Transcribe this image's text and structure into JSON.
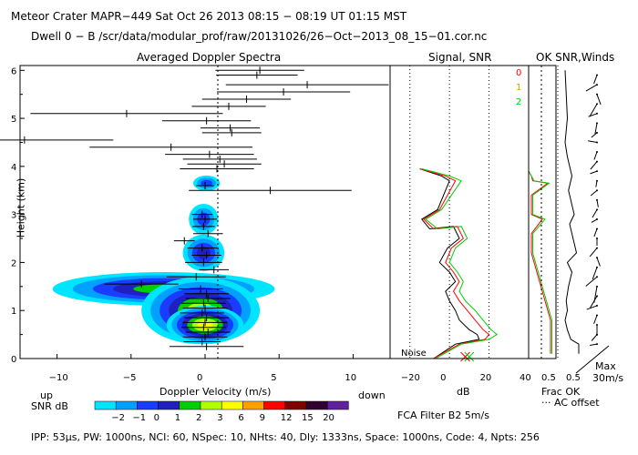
{
  "header": {
    "line1": "Meteor Crater   MAPR−449   Sat Oct 26 2013 08:15 − 08:19 UT 01:15 MST",
    "line2": "Dwell   0 −  B    /scr/data/modular_prof/raw/20131026/26−Oct−2013_08_15−01.cor.nc"
  },
  "colorbar": {
    "label": "SNR dB",
    "levels": [
      "−2",
      "−1",
      "0",
      "1",
      "2",
      "3",
      "6",
      "9",
      "12",
      "15",
      "20"
    ],
    "colors": [
      "#00e5ff",
      "#00a0ff",
      "#1a3cff",
      "#2020c0",
      "#00d000",
      "#b0ff00",
      "#ffff00",
      "#ffa000",
      "#ff0000",
      "#800000",
      "#300030",
      "#6020a0"
    ]
  },
  "footer": {
    "params": "IPP:  53μs,   PW: 1000ns,   NCI:  60,   NSpec: 10,  NHts: 40,   Dly: 1333ns,   Space: 1000ns,   Code: 4,   Npts: 256",
    "filter": "FCA Filter B2   5m/s",
    "up": "up",
    "down": "down"
  },
  "chart_data": [
    {
      "id": "doppler",
      "type": "heatmap",
      "title": "Averaged Doppler Spectra",
      "xlabel": "Doppler Velocity (m/s)",
      "ylabel": "Height (km)",
      "xlim": [
        -12.5,
        12.5
      ],
      "ylim": [
        0,
        6.1
      ],
      "xticks": [
        "−10",
        "−5",
        "0",
        "5",
        "10"
      ],
      "yticks": [
        "0",
        "1",
        "2",
        "3",
        "4",
        "5",
        "6"
      ],
      "spectra_peaks": [
        {
          "h": 6.0,
          "v": 3.7,
          "width": 6
        },
        {
          "h": 5.9,
          "v": 3.5,
          "width": 5.5
        },
        {
          "h": 5.7,
          "v": 6.9,
          "width": 11
        },
        {
          "h": 5.55,
          "v": 5.3,
          "width": 9
        },
        {
          "h": 5.4,
          "v": 2.8,
          "width": 6
        },
        {
          "h": 5.25,
          "v": 1.6,
          "width": 5
        },
        {
          "h": 5.1,
          "v": -5.3,
          "width": 13
        },
        {
          "h": 4.95,
          "v": 0.1,
          "width": 6
        },
        {
          "h": 4.8,
          "v": 1.7,
          "width": 4
        },
        {
          "h": 4.7,
          "v": 1.8,
          "width": 4
        },
        {
          "h": 4.55,
          "v": -12.2,
          "width": 12
        },
        {
          "h": 4.4,
          "v": -2.3,
          "width": 11
        },
        {
          "h": 4.25,
          "v": 0.3,
          "width": 6
        },
        {
          "h": 4.15,
          "v": 1.0,
          "width": 5
        },
        {
          "h": 4.05,
          "v": 1.3,
          "width": 5
        },
        {
          "h": 3.95,
          "v": 0.8,
          "width": 5
        },
        {
          "h": 3.6,
          "v": 0.0,
          "width": 1.2
        },
        {
          "h": 3.5,
          "v": 4.4,
          "width": 11
        },
        {
          "h": 3.0,
          "v": -0.2,
          "width": 1.4
        },
        {
          "h": 2.9,
          "v": 0.0,
          "width": 1.6
        },
        {
          "h": 2.75,
          "v": -0.1,
          "width": 1.5
        },
        {
          "h": 2.6,
          "v": 0.2,
          "width": 2
        },
        {
          "h": 2.45,
          "v": -1.4,
          "width": 1.4
        },
        {
          "h": 2.3,
          "v": -0.2,
          "width": 2
        },
        {
          "h": 2.15,
          "v": 0.1,
          "width": 2
        },
        {
          "h": 2.0,
          "v": -0.1,
          "width": 2.5
        },
        {
          "h": 1.85,
          "v": 0.6,
          "width": 2
        },
        {
          "h": 1.7,
          "v": -0.6,
          "width": 4
        },
        {
          "h": 1.55,
          "v": -4.3,
          "width": 5
        },
        {
          "h": 1.45,
          "v": -0.3,
          "width": 3
        },
        {
          "h": 1.35,
          "v": 0.1,
          "width": 3
        },
        {
          "h": 1.25,
          "v": 0.2,
          "width": 3
        },
        {
          "h": 1.15,
          "v": -0.1,
          "width": 3
        },
        {
          "h": 1.05,
          "v": 0.0,
          "width": 3
        },
        {
          "h": 0.95,
          "v": -0.2,
          "width": 3
        },
        {
          "h": 0.85,
          "v": 0.1,
          "width": 3
        },
        {
          "h": 0.75,
          "v": 0.0,
          "width": 3
        },
        {
          "h": 0.65,
          "v": -0.1,
          "width": 3
        },
        {
          "h": 0.55,
          "v": 0.2,
          "width": 3
        },
        {
          "h": 0.45,
          "v": 0.0,
          "width": 3
        },
        {
          "h": 0.35,
          "v": -0.2,
          "width": 2.5
        },
        {
          "h": 0.25,
          "v": 0.1,
          "width": 5
        }
      ],
      "snr_blobs": [
        {
          "h": 3.65,
          "v": 0.1,
          "hw": 0.9,
          "hh": 0.16,
          "level": 2
        },
        {
          "h": 2.9,
          "v": -0.1,
          "hw": 1.0,
          "hh": 0.32,
          "level": 2
        },
        {
          "h": 2.2,
          "v": -0.1,
          "hw": 1.4,
          "hh": 0.38,
          "level": 3
        },
        {
          "h": 1.45,
          "v": -2.8,
          "hw": 7.5,
          "hh": 0.35,
          "level": 4
        },
        {
          "h": 1.0,
          "v": -0.3,
          "hw": 4.0,
          "hh": 0.7,
          "level": 5
        },
        {
          "h": 0.7,
          "v": 0.0,
          "hw": 2.6,
          "hh": 0.4,
          "level": 6
        }
      ],
      "noise_label": "Noise"
    },
    {
      "id": "signal",
      "type": "line",
      "title": "Signal, SNR",
      "xlabel": "dB",
      "xlim": [
        -30,
        40
      ],
      "ylim": [
        0,
        6.1
      ],
      "xticks": [
        "−20",
        "0",
        "20",
        "40"
      ],
      "series": [
        {
          "name": "0",
          "color": "#000000",
          "x": [
            -15,
            -4,
            0,
            -6,
            -14,
            -10,
            2,
            5,
            -1,
            -5,
            0,
            3,
            -2,
            0,
            3,
            5,
            10,
            14,
            15,
            3,
            -8
          ],
          "h": [
            3.95,
            3.8,
            3.7,
            3.1,
            2.9,
            2.7,
            2.75,
            2.5,
            2.3,
            2.0,
            1.8,
            1.6,
            1.4,
            1.2,
            1.0,
            0.8,
            0.6,
            0.5,
            0.4,
            0.3,
            0.0
          ]
        },
        {
          "name": "1",
          "color": "#ff0000",
          "x": [
            -15,
            -2,
            3,
            -5,
            -13,
            -8,
            4,
            7,
            1,
            -2,
            2,
            5,
            2,
            5,
            9,
            13,
            17,
            20,
            18,
            5,
            -8
          ],
          "h": [
            3.95,
            3.8,
            3.7,
            3.1,
            2.9,
            2.7,
            2.75,
            2.5,
            2.3,
            2.0,
            1.8,
            1.6,
            1.4,
            1.2,
            1.0,
            0.8,
            0.6,
            0.5,
            0.4,
            0.3,
            0.0
          ]
        },
        {
          "name": "2",
          "color": "#00cc00",
          "x": [
            -14,
            0,
            6,
            -4,
            -12,
            -6,
            6,
            9,
            3,
            0,
            4,
            7,
            5,
            8,
            13,
            17,
            21,
            24,
            20,
            6,
            -7
          ],
          "h": [
            3.95,
            3.8,
            3.7,
            3.1,
            2.9,
            2.7,
            2.75,
            2.5,
            2.3,
            2.0,
            1.8,
            1.6,
            1.4,
            1.2,
            1.0,
            0.8,
            0.6,
            0.5,
            0.4,
            0.3,
            0.0
          ]
        }
      ],
      "noise_markers": [
        {
          "x": 8,
          "color": "#ff0000"
        },
        {
          "x": 10,
          "color": "#00cc00"
        }
      ]
    },
    {
      "id": "winds",
      "type": "line",
      "title": "OK SNR,Winds",
      "legend": [
        "0",
        "1",
        "2"
      ],
      "xlabel": "Frac OK",
      "xticks": [
        "0.5",
        "0.5"
      ],
      "note": "··· AC offset",
      "max_label": "Max",
      "speed_label": "30m/s",
      "frac_ok": {
        "x": [
          0.2,
          0.25,
          0.3,
          0.2,
          0.3,
          0.5,
          0.35,
          0.6,
          0.4,
          0.7,
          0.3,
          0.5,
          0.35,
          0.25,
          0.3,
          0.2,
          0.3,
          0.45,
          0.8,
          0.8
        ],
        "h": [
          6.0,
          5.5,
          5.0,
          4.5,
          4.2,
          3.8,
          3.5,
          3.0,
          2.8,
          2.2,
          2.0,
          1.8,
          1.5,
          1.2,
          1.0,
          0.8,
          0.6,
          0.4,
          0.3,
          0.1
        ]
      },
      "snr_ok_lines": [
        {
          "color": "#ff0000",
          "x": [
            0.0,
            0.1,
            0.15,
            0.7,
            0.1,
            0.1,
            0.5,
            0.1,
            0.1,
            0.3,
            0.5,
            0.8,
            0.8
          ],
          "h": [
            3.9,
            3.8,
            3.7,
            3.65,
            3.4,
            3.0,
            2.9,
            2.6,
            2.2,
            1.8,
            1.4,
            0.8,
            0.1
          ]
        },
        {
          "color": "#00cc00",
          "x": [
            0.0,
            0.1,
            0.2,
            0.75,
            0.15,
            0.15,
            0.6,
            0.15,
            0.15,
            0.35,
            0.55,
            0.85,
            0.85
          ],
          "h": [
            3.9,
            3.8,
            3.7,
            3.65,
            3.4,
            3.0,
            2.9,
            2.6,
            2.2,
            1.8,
            1.4,
            0.8,
            0.1
          ]
        }
      ],
      "wind_barbs": [
        {
          "h": 5.9,
          "dir": 200,
          "spd": 10
        },
        {
          "h": 5.7,
          "dir": 240,
          "spd": 14
        },
        {
          "h": 5.5,
          "dir": 160,
          "spd": 12
        },
        {
          "h": 5.3,
          "dir": 210,
          "spd": 16
        },
        {
          "h": 5.1,
          "dir": 250,
          "spd": 10
        },
        {
          "h": 4.9,
          "dir": 190,
          "spd": 12
        },
        {
          "h": 4.7,
          "dir": 230,
          "spd": 8
        },
        {
          "h": 4.5,
          "dir": 280,
          "spd": 10
        },
        {
          "h": 4.3,
          "dir": 200,
          "spd": 9
        },
        {
          "h": 4.1,
          "dir": 220,
          "spd": 11
        },
        {
          "h": 3.9,
          "dir": 250,
          "spd": 8
        },
        {
          "h": 3.7,
          "dir": 190,
          "spd": 7
        },
        {
          "h": 3.5,
          "dir": 230,
          "spd": 9
        },
        {
          "h": 3.3,
          "dir": 170,
          "spd": 8
        },
        {
          "h": 3.1,
          "dir": 210,
          "spd": 10
        },
        {
          "h": 2.9,
          "dir": 240,
          "spd": 7
        },
        {
          "h": 2.7,
          "dir": 200,
          "spd": 9
        },
        {
          "h": 2.5,
          "dir": 180,
          "spd": 8
        },
        {
          "h": 2.3,
          "dir": 220,
          "spd": 12
        },
        {
          "h": 2.1,
          "dir": 160,
          "spd": 10
        },
        {
          "h": 1.9,
          "dir": 200,
          "spd": 14
        },
        {
          "h": 1.7,
          "dir": 230,
          "spd": 16
        },
        {
          "h": 1.5,
          "dir": 190,
          "spd": 18
        },
        {
          "h": 1.3,
          "dir": 210,
          "spd": 15
        },
        {
          "h": 1.1,
          "dir": 250,
          "spd": 12
        },
        {
          "h": 0.9,
          "dir": 200,
          "spd": 10
        },
        {
          "h": 0.7,
          "dir": 180,
          "spd": 12
        },
        {
          "h": 0.5,
          "dir": 220,
          "spd": 9
        },
        {
          "h": 0.3,
          "dir": 260,
          "spd": 8
        }
      ]
    }
  ]
}
